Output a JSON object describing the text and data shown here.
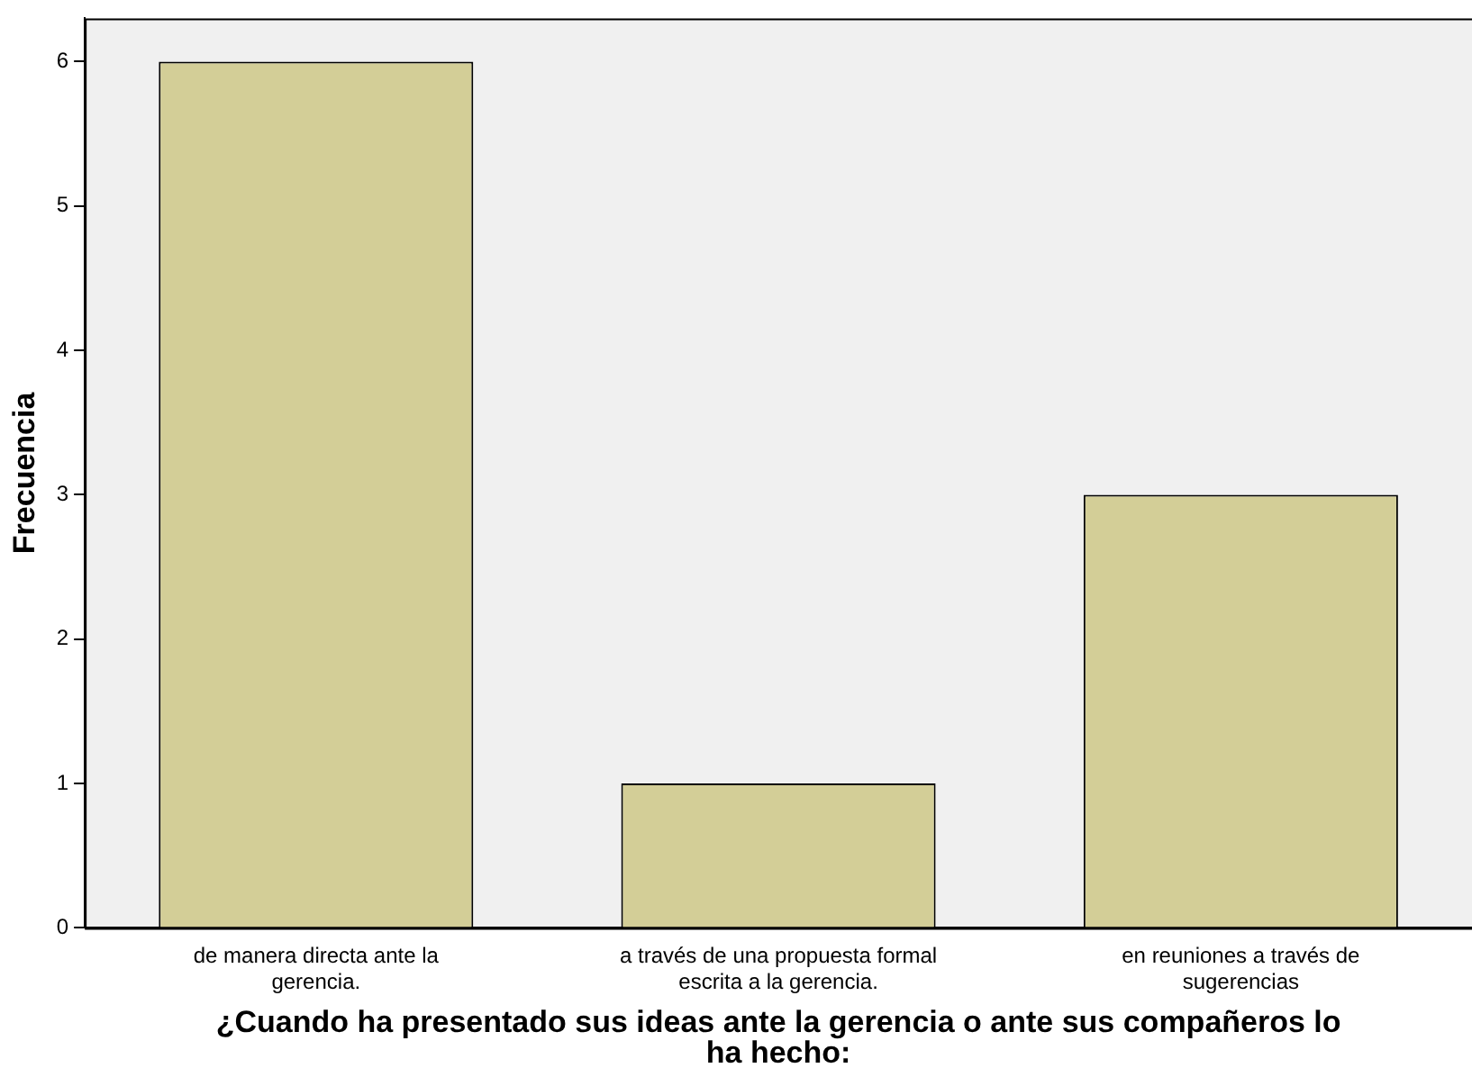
{
  "chart_data": {
    "type": "bar",
    "xlabel": "¿Cuando ha presentado sus ideas ante la gerencia o ante sus compañeros lo ha hecho:",
    "ylabel": "Frecuencia",
    "categories": [
      "de manera directa ante la gerencia.",
      "a través de una propuesta formal escrita a la gerencia.",
      "en reuniones a través de sugerencias"
    ],
    "values": [
      6,
      1,
      3
    ],
    "color": "#d3ce97",
    "ylim": [
      0,
      6.3
    ],
    "yticks": [
      0,
      1,
      2,
      3,
      4,
      5,
      6
    ],
    "grid": false,
    "legend": false
  }
}
